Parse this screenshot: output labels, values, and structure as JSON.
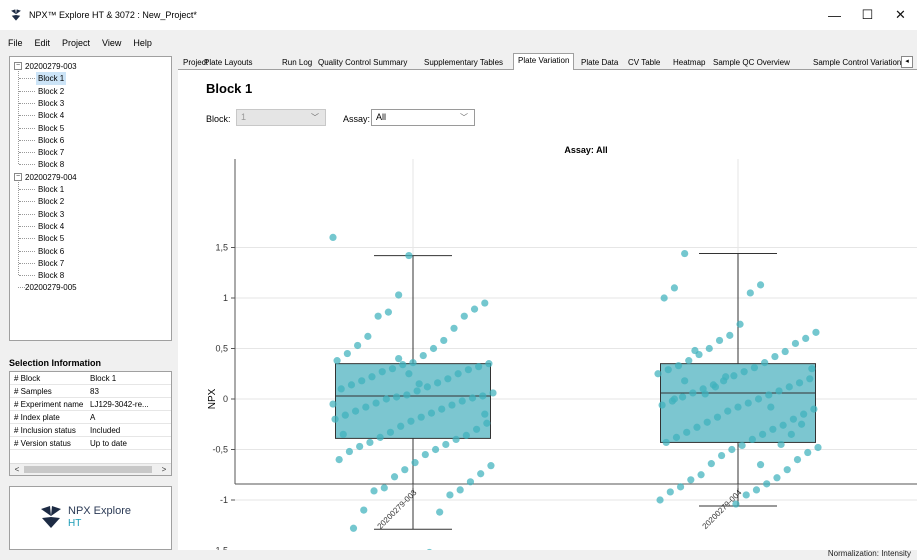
{
  "window": {
    "title": "NPX™ Explore HT & 3072 : New_Project*",
    "minimize": "—",
    "maximize": "☐",
    "close": "✕"
  },
  "menu": [
    "File",
    "Edit",
    "Project",
    "View",
    "Help"
  ],
  "tree": {
    "groups": [
      {
        "label": "20200279-003",
        "expanded": true,
        "blocks": [
          "Block 1",
          "Block 2",
          "Block 3",
          "Block 4",
          "Block 5",
          "Block 6",
          "Block 7",
          "Block 8"
        ]
      },
      {
        "label": "20200279-004",
        "expanded": true,
        "blocks": [
          "Block 1",
          "Block 2",
          "Block 3",
          "Block 4",
          "Block 5",
          "Block 6",
          "Block 7",
          "Block 8"
        ]
      },
      {
        "label": "20200279-005",
        "expanded": false,
        "blocks": []
      }
    ],
    "selected": "20200279-003 / Block 1"
  },
  "selection_info": {
    "title": "Selection Information",
    "rows": [
      {
        "key": "# Block",
        "value": "Block 1"
      },
      {
        "key": "# Samples",
        "value": "83"
      },
      {
        "key": "# Experiment name",
        "value": "LJ129-3042-re..."
      },
      {
        "key": "# Index plate",
        "value": "A"
      },
      {
        "key": "# Inclusion status",
        "value": "Included"
      },
      {
        "key": "# Version status",
        "value": "Up to date"
      }
    ]
  },
  "logo": {
    "name": "NPX Explore",
    "sub": "HT"
  },
  "tabs": [
    "Project",
    "Plate Layouts",
    "Run Log",
    "Quality Control Summary",
    "Supplementary Tables",
    "Plate Variation",
    "Plate Data",
    "CV Table",
    "Heatmap",
    "Sample QC Overview",
    "Sample Control Variation"
  ],
  "active_tab": "Plate Variation",
  "content": {
    "heading": "Block 1",
    "block_label": "Block:",
    "block_value": "1",
    "assay_label": "Assay:",
    "assay_value": "All"
  },
  "status": {
    "text": "Normalization: Intensity"
  },
  "colors": {
    "box_fill": "#7cc6d0",
    "point": "#3fb1bd",
    "accent": "#1a9bb6"
  },
  "chart_data": {
    "type": "box",
    "title": "Assay: All",
    "ylabel": "NPX",
    "xlabel": "",
    "ylim": [
      -1.8,
      1.8
    ],
    "yticks": [
      1.5,
      1,
      0.5,
      0,
      -0.5,
      -1,
      -1.5
    ],
    "ytick_labels": [
      "1,5",
      "1",
      "0,5",
      "0",
      "-0,5",
      "-1",
      "-1,5"
    ],
    "grid": true,
    "categories": [
      "20200279-003",
      "20200279-004"
    ],
    "boxes": [
      {
        "category": "20200279-003",
        "whisker_low": -1.29,
        "q1": -0.39,
        "median": 0.03,
        "q3": 0.35,
        "whisker_high": 1.42
      },
      {
        "category": "20200279-004",
        "whisker_low": -1.06,
        "q1": -0.43,
        "median": 0.06,
        "q3": 0.35,
        "whisker_high": 1.44
      }
    ],
    "points": [
      [
        1.6,
        1.42,
        0.95,
        1.03,
        0.89,
        0.86,
        0.82,
        0.82,
        0.7,
        0.62,
        0.58,
        0.53,
        0.5,
        0.45,
        0.43,
        0.38,
        0.36,
        0.35,
        0.34,
        0.32,
        0.3,
        0.29,
        0.27,
        0.25,
        0.22,
        0.2,
        0.18,
        0.16,
        0.14,
        0.12,
        0.1,
        0.08,
        0.06,
        0.04,
        0.03,
        0.02,
        0.01,
        0.0,
        -0.02,
        -0.04,
        -0.06,
        -0.08,
        -0.1,
        -0.12,
        -0.14,
        -0.16,
        -0.18,
        -0.2,
        -0.22,
        -0.24,
        -0.27,
        -0.3,
        -0.33,
        -0.36,
        -0.38,
        -0.4,
        -0.43,
        -0.45,
        -0.47,
        -0.5,
        -0.52,
        -0.55,
        -0.6,
        -0.63,
        -0.66,
        -0.7,
        -0.74,
        -0.77,
        -0.82,
        -0.88,
        -0.9,
        -0.91,
        -0.95,
        -1.1,
        -1.12,
        -1.28,
        -1.52,
        -0.35,
        0.15,
        -0.05,
        0.25,
        -0.15,
        0.4
      ],
      [
        1.44,
        1.13,
        1.1,
        1.05,
        1.0,
        0.74,
        0.66,
        0.63,
        0.6,
        0.58,
        0.55,
        0.5,
        0.47,
        0.44,
        0.42,
        0.38,
        0.36,
        0.33,
        0.31,
        0.29,
        0.27,
        0.25,
        0.23,
        0.2,
        0.18,
        0.16,
        0.14,
        0.12,
        0.1,
        0.08,
        0.06,
        0.04,
        0.02,
        0.0,
        -0.02,
        -0.04,
        -0.06,
        -0.08,
        -0.1,
        -0.12,
        -0.15,
        -0.18,
        -0.2,
        -0.23,
        -0.26,
        -0.28,
        -0.3,
        -0.33,
        -0.35,
        -0.38,
        -0.4,
        -0.43,
        -0.46,
        -0.48,
        -0.5,
        -0.53,
        -0.56,
        -0.6,
        -0.64,
        -0.7,
        -0.75,
        -0.78,
        -0.8,
        -0.84,
        -0.87,
        -0.9,
        -0.92,
        -0.95,
        -1.0,
        -1.04,
        0.3,
        0.22,
        -0.25,
        0.12,
        -0.35,
        0.05,
        -0.45,
        0.48,
        -0.08,
        0.18,
        -0.65,
        0.0
      ]
    ]
  }
}
